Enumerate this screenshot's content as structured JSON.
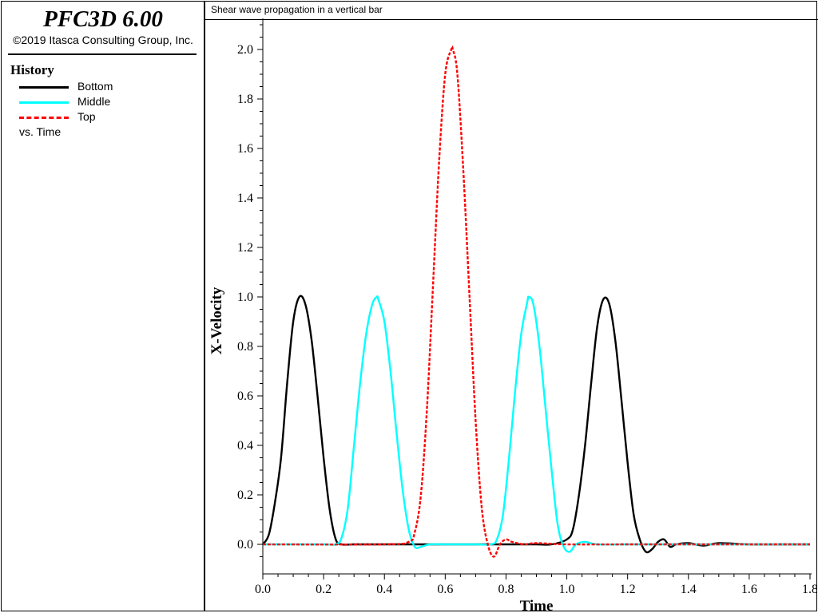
{
  "app": {
    "title": "PFC3D 6.00",
    "copyright": "©2019 Itasca Consulting Group, Inc."
  },
  "legend": {
    "title": "History",
    "items": [
      {
        "label": "Bottom",
        "color": "#000000",
        "style": "solid"
      },
      {
        "label": "Middle",
        "color": "#00ffff",
        "style": "solid"
      },
      {
        "label": "Top",
        "color": "#ff0000",
        "style": "dashed"
      }
    ],
    "vs_label": "vs. Time"
  },
  "plot": {
    "title": "Shear wave propagation in a vertical bar"
  },
  "chart_data": {
    "type": "line",
    "title": "Shear wave propagation in a vertical bar",
    "xlabel": "Time",
    "ylabel": "X-Velocity",
    "xlim": [
      0.0,
      1.8
    ],
    "ylim": [
      -0.1,
      2.1
    ],
    "xticks": [
      "0.0",
      "0.2",
      "0.4",
      "0.6",
      "0.8",
      "1.0",
      "1.2",
      "1.4",
      "1.6",
      "1.8"
    ],
    "yticks": [
      "0.0",
      "0.2",
      "0.4",
      "0.6",
      "0.8",
      "1.0",
      "1.2",
      "1.4",
      "1.6",
      "1.8",
      "2.0"
    ],
    "grid": false,
    "legend_position": "left panel",
    "series": [
      {
        "name": "Bottom",
        "color": "#000000",
        "style": "solid",
        "x": [
          0.0,
          0.02,
          0.04,
          0.06,
          0.08,
          0.1,
          0.12,
          0.14,
          0.16,
          0.18,
          0.2,
          0.22,
          0.24,
          0.26,
          0.3,
          0.4,
          0.5,
          0.6,
          0.7,
          0.8,
          0.9,
          0.95,
          1.0,
          1.02,
          1.04,
          1.06,
          1.08,
          1.1,
          1.12,
          1.14,
          1.16,
          1.18,
          1.2,
          1.22,
          1.24,
          1.26,
          1.28,
          1.3,
          1.32,
          1.34,
          1.36,
          1.4,
          1.45,
          1.5,
          1.6,
          1.7,
          1.8
        ],
        "y": [
          0.0,
          0.04,
          0.17,
          0.35,
          0.65,
          0.9,
          1.0,
          0.97,
          0.83,
          0.6,
          0.35,
          0.14,
          0.02,
          0.0,
          0.0,
          0.0,
          0.0,
          0.0,
          0.0,
          0.0,
          0.0,
          0.0,
          0.02,
          0.06,
          0.2,
          0.4,
          0.65,
          0.88,
          0.99,
          0.97,
          0.82,
          0.58,
          0.33,
          0.12,
          0.02,
          -0.03,
          -0.02,
          0.01,
          0.02,
          -0.01,
          0.0,
          0.005,
          -0.005,
          0.005,
          0.0,
          0.0,
          0.0
        ]
      },
      {
        "name": "Middle",
        "color": "#00ffff",
        "style": "solid",
        "x": [
          0.0,
          0.2,
          0.24,
          0.26,
          0.28,
          0.3,
          0.32,
          0.34,
          0.36,
          0.375,
          0.38,
          0.4,
          0.42,
          0.44,
          0.46,
          0.48,
          0.5,
          0.52,
          0.55,
          0.6,
          0.65,
          0.7,
          0.75,
          0.77,
          0.79,
          0.81,
          0.83,
          0.85,
          0.87,
          0.875,
          0.89,
          0.91,
          0.93,
          0.95,
          0.97,
          0.99,
          1.01,
          1.03,
          1.06,
          1.1,
          1.2,
          1.4,
          1.6,
          1.8
        ],
        "y": [
          0.0,
          0.0,
          0.0,
          0.03,
          0.15,
          0.4,
          0.65,
          0.85,
          0.97,
          1.0,
          0.99,
          0.9,
          0.7,
          0.45,
          0.22,
          0.06,
          -0.01,
          -0.01,
          0.0,
          0.0,
          0.0,
          0.0,
          0.0,
          0.02,
          0.12,
          0.35,
          0.62,
          0.85,
          0.98,
          1.0,
          0.97,
          0.8,
          0.55,
          0.3,
          0.08,
          -0.01,
          -0.03,
          0.0,
          0.01,
          0.0,
          0.0,
          0.0,
          0.0,
          0.0
        ]
      },
      {
        "name": "Top",
        "color": "#ff0000",
        "style": "dashed",
        "x": [
          0.0,
          0.4,
          0.48,
          0.5,
          0.52,
          0.54,
          0.56,
          0.58,
          0.6,
          0.62,
          0.625,
          0.64,
          0.66,
          0.68,
          0.7,
          0.72,
          0.74,
          0.76,
          0.78,
          0.8,
          0.82,
          0.86,
          0.9,
          1.0,
          1.2,
          1.4,
          1.6,
          1.8
        ],
        "y": [
          0.0,
          0.0,
          0.01,
          0.05,
          0.2,
          0.55,
          1.05,
          1.55,
          1.9,
          2.0,
          2.0,
          1.9,
          1.5,
          1.0,
          0.5,
          0.15,
          0.0,
          -0.05,
          0.0,
          0.02,
          0.01,
          0.0,
          0.005,
          0.0,
          0.0,
          0.0,
          0.0,
          0.0
        ]
      }
    ]
  }
}
